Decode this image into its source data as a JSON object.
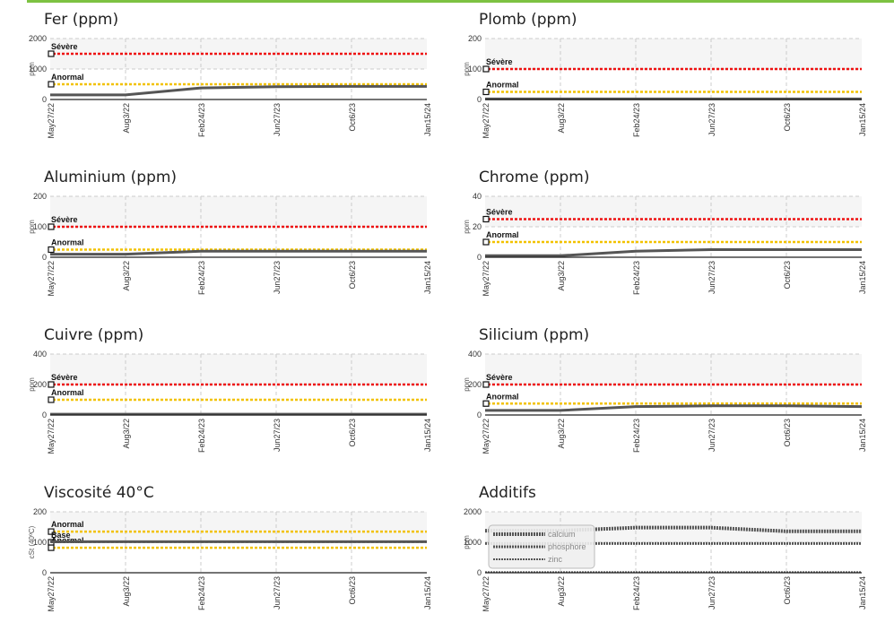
{
  "x_labels": [
    "May27/22",
    "Aug3/22",
    "Feb24/23",
    "Jun27/23",
    "Oct6/23",
    "Jan15/24"
  ],
  "colors": {
    "severe": "#ee1111",
    "abnormal": "#f2c200",
    "series": "#555555",
    "accent": "#7dc242"
  },
  "chart_data": [
    {
      "type": "line",
      "title": "Fer (ppm)",
      "ylabel": "ppm",
      "ylim": [
        0,
        2000
      ],
      "yticks": [
        "0",
        "1000",
        "2000"
      ],
      "x": [
        "May27/22",
        "Aug3/22",
        "Feb24/23",
        "Jun27/23",
        "Oct6/23",
        "Jan15/24"
      ],
      "thresholds": [
        {
          "label": "Sévère",
          "value": 1500,
          "level": "severe"
        },
        {
          "label": "Anormal",
          "value": 500,
          "level": "abnormal"
        }
      ],
      "series": [
        {
          "values": [
            150,
            150,
            380,
            420,
            430,
            430
          ],
          "width": 3
        }
      ]
    },
    {
      "type": "line",
      "title": "Plomb (ppm)",
      "ylabel": "ppm",
      "ylim": [
        0,
        200
      ],
      "yticks": [
        "0",
        "100",
        "200"
      ],
      "x": [
        "May27/22",
        "Aug3/22",
        "Feb24/23",
        "Jun27/23",
        "Oct6/23",
        "Jan15/24"
      ],
      "thresholds": [
        {
          "label": "Sévère",
          "value": 100,
          "level": "severe"
        },
        {
          "label": "Anormal",
          "value": 25,
          "level": "abnormal"
        }
      ],
      "series": [
        {
          "values": [
            2,
            2,
            2,
            2,
            2,
            2
          ],
          "width": 3
        }
      ]
    },
    {
      "type": "line",
      "title": "Aluminium (ppm)",
      "ylabel": "ppm",
      "ylim": [
        0,
        200
      ],
      "yticks": [
        "0",
        "100",
        "200"
      ],
      "x": [
        "May27/22",
        "Aug3/22",
        "Feb24/23",
        "Jun27/23",
        "Oct6/23",
        "Jan15/24"
      ],
      "thresholds": [
        {
          "label": "Sévère",
          "value": 100,
          "level": "severe"
        },
        {
          "label": "Anormal",
          "value": 25,
          "level": "abnormal"
        }
      ],
      "series": [
        {
          "values": [
            10,
            10,
            20,
            20,
            20,
            20
          ],
          "width": 3
        }
      ]
    },
    {
      "type": "line",
      "title": "Chrome (ppm)",
      "ylabel": "ppm",
      "ylim": [
        0,
        40
      ],
      "yticks": [
        "0",
        "20",
        "40"
      ],
      "x": [
        "May27/22",
        "Aug3/22",
        "Feb24/23",
        "Jun27/23",
        "Oct6/23",
        "Jan15/24"
      ],
      "thresholds": [
        {
          "label": "Sévère",
          "value": 25,
          "level": "severe"
        },
        {
          "label": "Anormal",
          "value": 10,
          "level": "abnormal"
        }
      ],
      "series": [
        {
          "values": [
            1,
            1,
            4,
            5,
            5,
            5
          ],
          "width": 3
        }
      ]
    },
    {
      "type": "line",
      "title": "Cuivre (ppm)",
      "ylabel": "ppm",
      "ylim": [
        0,
        400
      ],
      "yticks": [
        "0",
        "200",
        "400"
      ],
      "x": [
        "May27/22",
        "Aug3/22",
        "Feb24/23",
        "Jun27/23",
        "Oct6/23",
        "Jan15/24"
      ],
      "thresholds": [
        {
          "label": "Sévère",
          "value": 200,
          "level": "severe"
        },
        {
          "label": "Anormal",
          "value": 100,
          "level": "abnormal"
        }
      ],
      "series": [
        {
          "values": [
            5,
            5,
            5,
            5,
            5,
            5
          ],
          "width": 3
        }
      ]
    },
    {
      "type": "line",
      "title": "Silicium (ppm)",
      "ylabel": "ppm",
      "ylim": [
        0,
        400
      ],
      "yticks": [
        "0",
        "200",
        "400"
      ],
      "x": [
        "May27/22",
        "Aug3/22",
        "Feb24/23",
        "Jun27/23",
        "Oct6/23",
        "Jan15/24"
      ],
      "thresholds": [
        {
          "label": "Sévère",
          "value": 200,
          "level": "severe"
        },
        {
          "label": "Anormal",
          "value": 75,
          "level": "abnormal"
        }
      ],
      "series": [
        {
          "values": [
            30,
            30,
            55,
            60,
            60,
            55
          ],
          "width": 3
        }
      ]
    },
    {
      "type": "line",
      "title": "Viscosité 40°C",
      "ylabel": "cSt (40ºC)",
      "ylim": [
        0,
        200
      ],
      "yticks": [
        "0",
        "100",
        "200"
      ],
      "x": [
        "May27/22",
        "Aug3/22",
        "Feb24/23",
        "Jun27/23",
        "Oct6/23",
        "Jan15/24"
      ],
      "thresholds": [
        {
          "label": "Anormal",
          "value": 135,
          "level": "abnormal"
        },
        {
          "label": "Base",
          "value": 100,
          "level": "base"
        },
        {
          "label": "Anormal",
          "value": 82,
          "level": "abnormal"
        }
      ],
      "series": [
        {
          "values": [
            102,
            102,
            102,
            102,
            102,
            102
          ],
          "width": 3
        }
      ]
    },
    {
      "type": "line",
      "title": "Additifs",
      "ylabel": "ppm",
      "ylim": [
        0,
        2000
      ],
      "yticks": [
        "0",
        "1000",
        "2000"
      ],
      "x": [
        "May27/22",
        "Aug3/22",
        "Feb24/23",
        "Jun27/23",
        "Oct6/23",
        "Jan15/24"
      ],
      "thresholds": [],
      "series": [
        {
          "name": "calcium",
          "values": [
            1380,
            1380,
            1480,
            1480,
            1360,
            1360
          ],
          "width": 4
        },
        {
          "name": "phosphore",
          "values": [
            960,
            960,
            960,
            960,
            960,
            960
          ],
          "width": 3
        },
        {
          "name": "zinc",
          "values": [
            20,
            20,
            20,
            20,
            20,
            20
          ],
          "width": 2
        }
      ],
      "legend": {
        "position": "top-left"
      }
    }
  ]
}
